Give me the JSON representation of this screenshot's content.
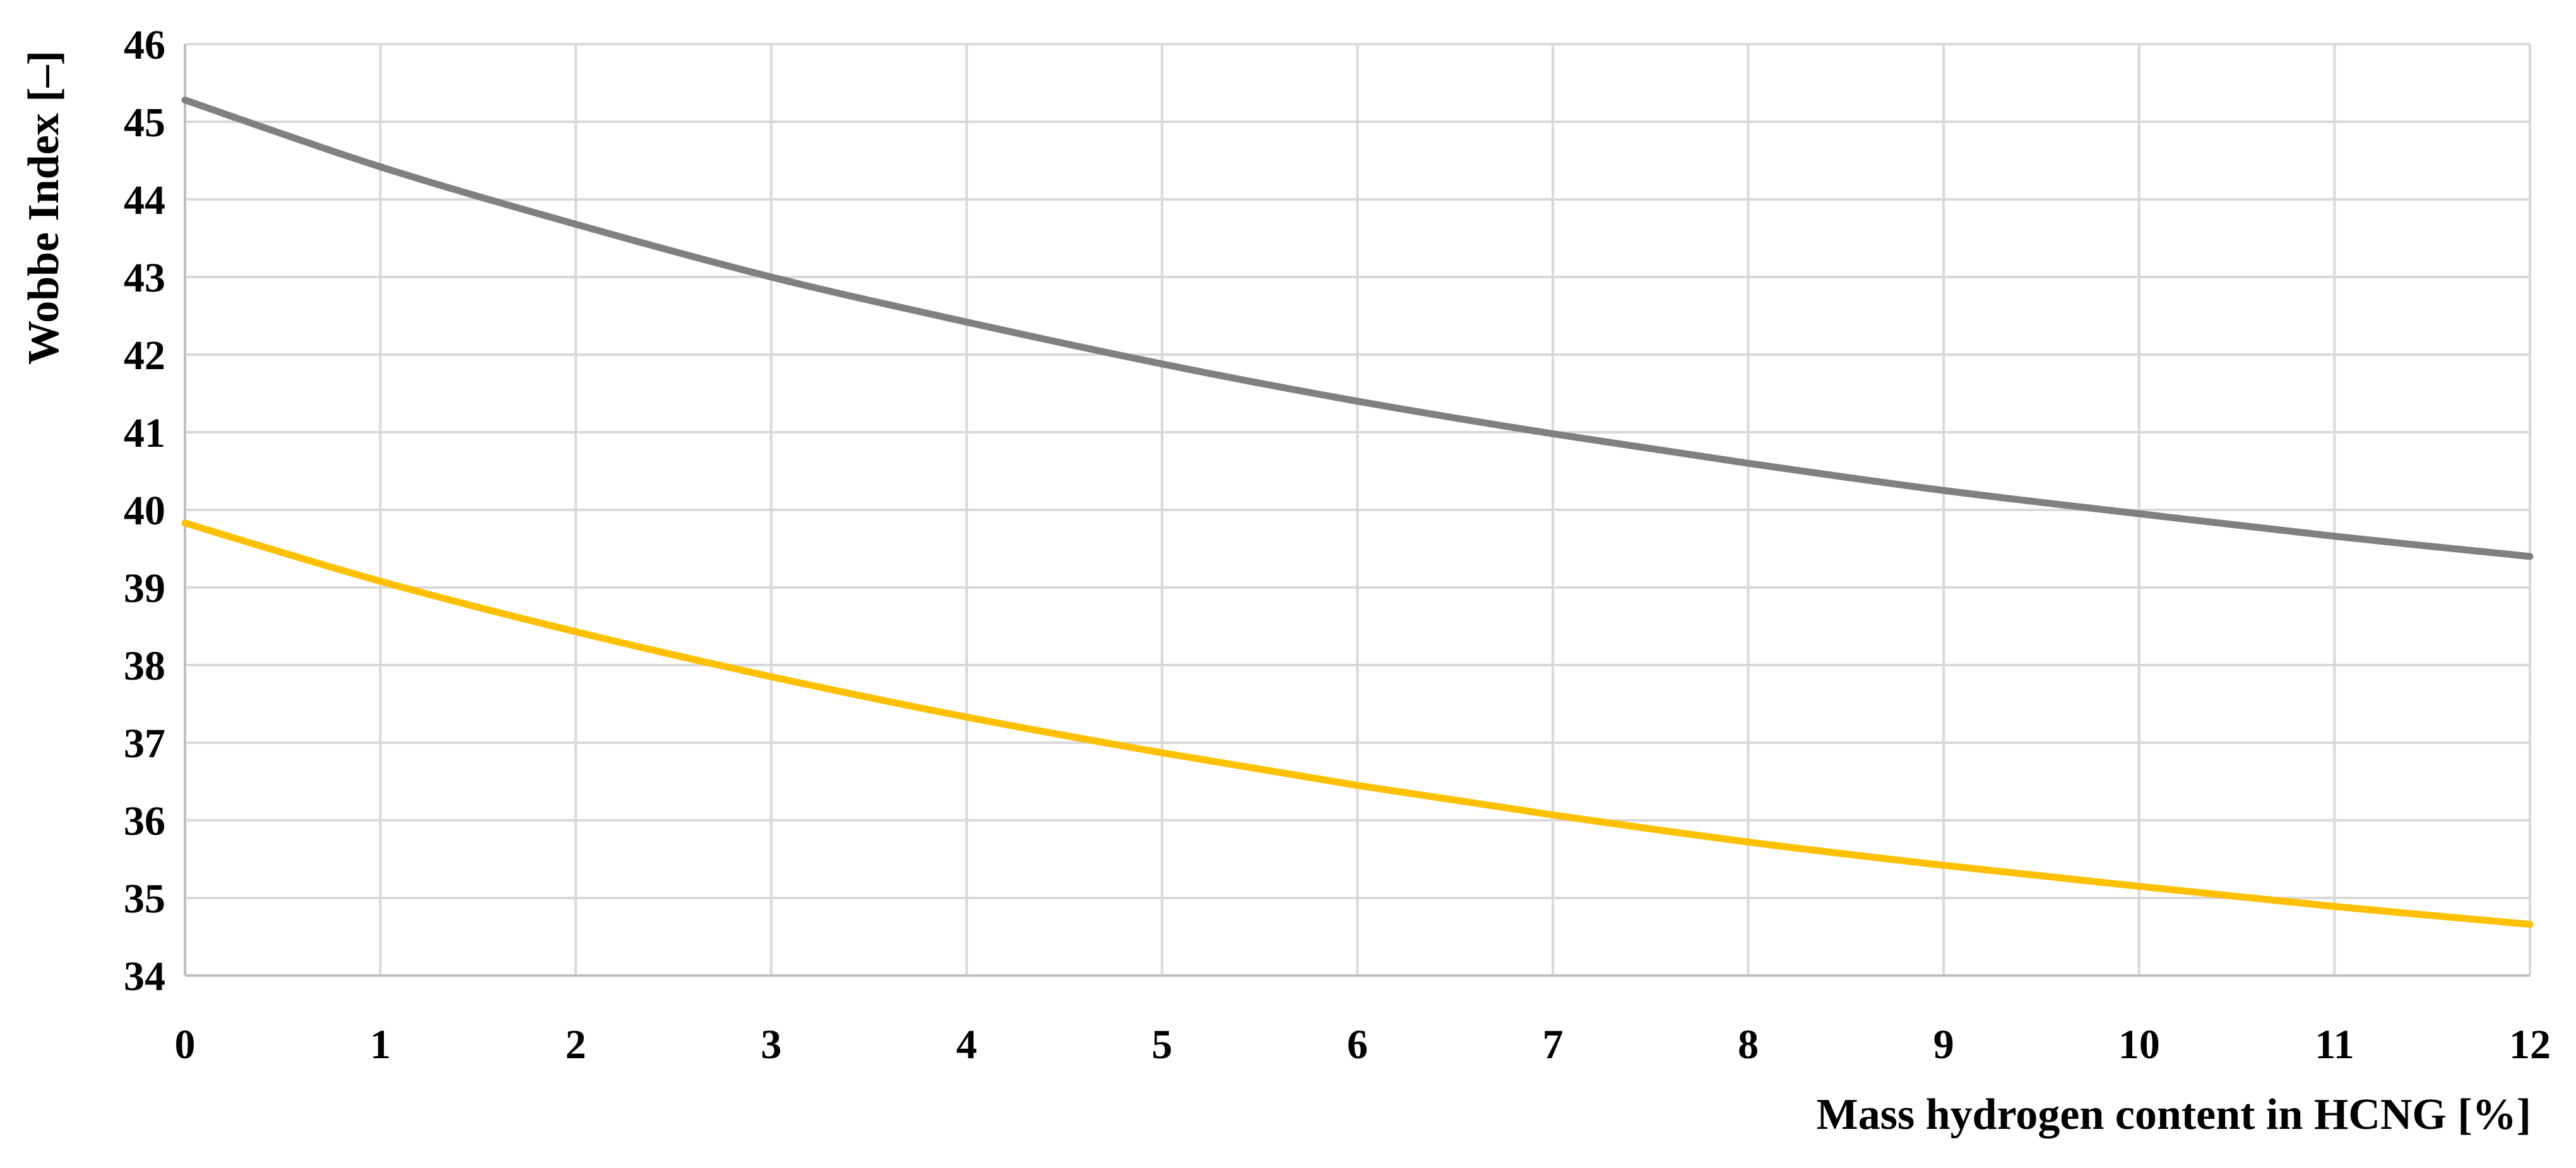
{
  "chart_data": {
    "type": "line",
    "title": "",
    "xlabel": "Mass hydrogen content in HCNG [%]",
    "ylabel": "Wobbe Index [–]",
    "xlim": [
      0,
      12
    ],
    "ylim": [
      34,
      46
    ],
    "x_ticks": [
      "0",
      "1",
      "2",
      "3",
      "4",
      "5",
      "6",
      "7",
      "8",
      "9",
      "10",
      "11",
      "12"
    ],
    "y_ticks": [
      "34",
      "35",
      "36",
      "37",
      "38",
      "39",
      "40",
      "41",
      "42",
      "43",
      "44",
      "45",
      "46"
    ],
    "grid": true,
    "legend": "none",
    "x": [
      0,
      1,
      2,
      3,
      4,
      5,
      6,
      7,
      8,
      9,
      10,
      11,
      12
    ],
    "series": [
      {
        "color": "#808080",
        "values": [
          45.28,
          44.42,
          43.68,
          43.0,
          42.42,
          41.88,
          41.4,
          40.98,
          40.6,
          40.25,
          39.95,
          39.66,
          39.4
        ]
      },
      {
        "color": "#FFC000",
        "values": [
          39.83,
          39.08,
          38.43,
          37.85,
          37.33,
          36.87,
          36.45,
          36.07,
          35.72,
          35.42,
          35.15,
          34.89,
          34.66
        ]
      }
    ],
    "grid_color": "#d9d9d9",
    "axis_color": "#bfbfbf"
  }
}
